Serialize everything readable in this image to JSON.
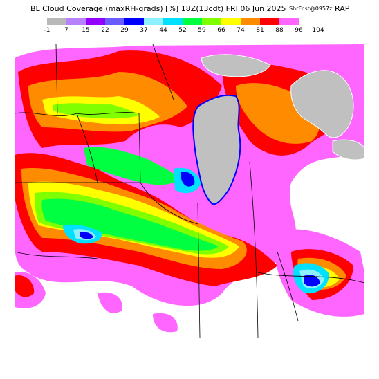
{
  "header": {
    "title": "BL Cloud Coverage (maxRH-grads) [%] 18Z(13cdt) FRI 06 Jun 2025",
    "subtitle": "ShrFcst@0957z",
    "model": "RAP"
  },
  "legend": {
    "ticks": [
      "-1",
      "7",
      "15",
      "22",
      "29",
      "37",
      "44",
      "52",
      "59",
      "66",
      "74",
      "81",
      "88",
      "96",
      "104"
    ],
    "colors": [
      "#b8b8b8",
      "#b680ff",
      "#9400ff",
      "#6a5cff",
      "#0000ff",
      "#8ef0ff",
      "#00e0ff",
      "#00ff40",
      "#80ff00",
      "#ffff00",
      "#ff8c00",
      "#ff0000",
      "#ff66ff",
      "#ffffff"
    ]
  },
  "map": {
    "region": "Great Lakes / Upper Midwest",
    "water_color": "#c0c0c0",
    "boundary_color": "#000000",
    "coast_color": "#ffffff"
  }
}
